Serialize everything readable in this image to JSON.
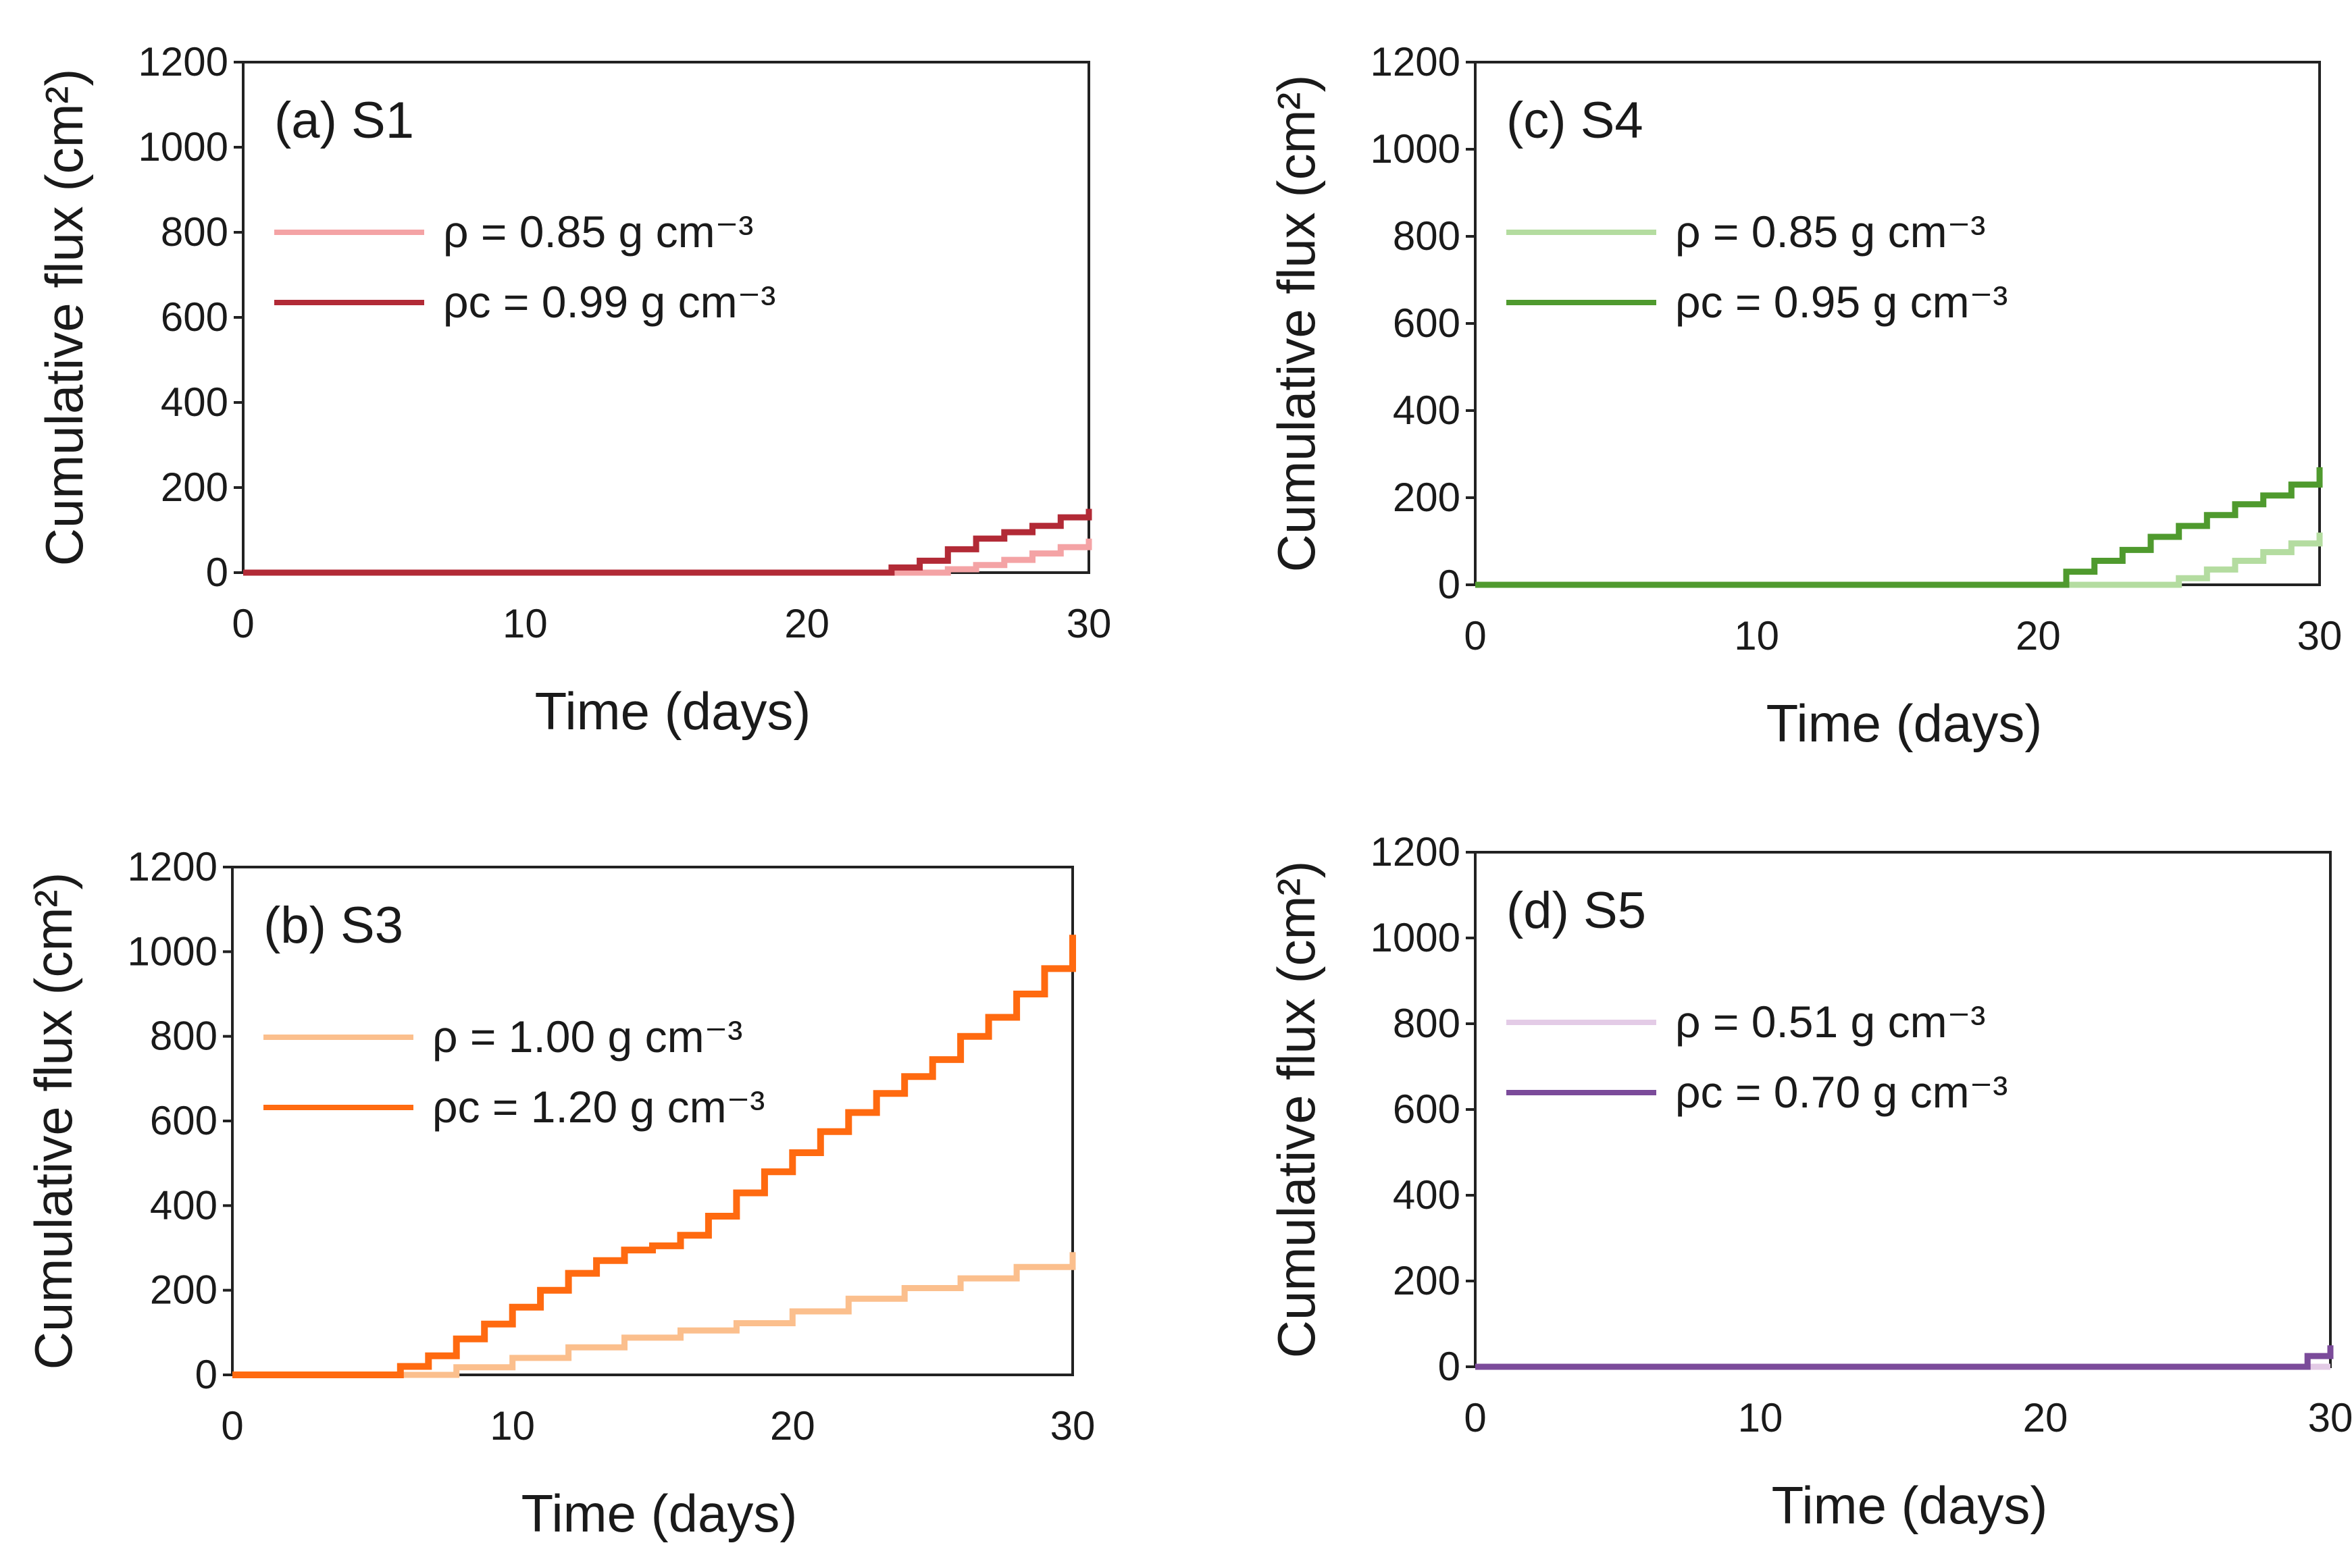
{
  "chart_data": [
    {
      "id": "a",
      "type": "line",
      "title": "(a) S1",
      "xlabel": "Time (days)",
      "ylabel": "Cumulative flux",
      "ylabel_unit": "(cm²)",
      "xlim": [
        0,
        30
      ],
      "ylim": [
        0,
        1200
      ],
      "xticks": [
        0,
        10,
        20,
        30
      ],
      "yticks": [
        0,
        200,
        400,
        600,
        800,
        1000,
        1200
      ],
      "grid": false,
      "legend_position": "upper-left",
      "series": [
        {
          "name": "ρ",
          "legend_label": "ρ   = 0.85 g cm⁻³",
          "color": "#f4a3a5",
          "stroke_width": 9,
          "x": [
            0,
            24,
            25,
            26,
            27,
            28,
            29,
            30
          ],
          "y": [
            0,
            0,
            8,
            18,
            30,
            45,
            60,
            80
          ]
        },
        {
          "name": "ρc",
          "legend_label": "ρc = 0.99 g cm⁻³",
          "color": "#b22a36",
          "stroke_width": 9,
          "x": [
            0,
            22,
            23,
            24,
            25,
            26,
            27,
            28,
            29,
            30
          ],
          "y": [
            0,
            0,
            12,
            28,
            55,
            80,
            95,
            110,
            130,
            150
          ]
        }
      ]
    },
    {
      "id": "c",
      "type": "line",
      "title": "(c) S4",
      "xlabel": "Time (days)",
      "ylabel": "Cumulative flux",
      "ylabel_unit": "(cm²)",
      "xlim": [
        0,
        30
      ],
      "ylim": [
        0,
        1200
      ],
      "xticks": [
        0,
        10,
        20,
        30
      ],
      "yticks": [
        0,
        200,
        400,
        600,
        800,
        1000,
        1200
      ],
      "grid": false,
      "legend_position": "upper-left",
      "series": [
        {
          "name": "ρ",
          "legend_label": "ρ   = 0.85 g cm⁻³",
          "color": "#b4dca0",
          "stroke_width": 9,
          "x": [
            0,
            24,
            25,
            26,
            27,
            28,
            29,
            30
          ],
          "y": [
            0,
            0,
            15,
            35,
            55,
            75,
            95,
            120
          ]
        },
        {
          "name": "ρc",
          "legend_label": "ρc = 0.95 g cm⁻³",
          "color": "#4f9a2e",
          "stroke_width": 9,
          "x": [
            0,
            20,
            21,
            22,
            23,
            24,
            25,
            26,
            27,
            28,
            29,
            30
          ],
          "y": [
            0,
            0,
            30,
            55,
            80,
            110,
            135,
            160,
            185,
            205,
            230,
            270
          ]
        }
      ]
    },
    {
      "id": "b",
      "type": "line",
      "title": "(b) S3",
      "xlabel": "Time (days)",
      "ylabel": "Cumulative flux",
      "ylabel_unit": "(cm²)",
      "xlim": [
        0,
        30
      ],
      "ylim": [
        0,
        1200
      ],
      "xticks": [
        0,
        10,
        20,
        30
      ],
      "yticks": [
        0,
        200,
        400,
        600,
        800,
        1000,
        1200
      ],
      "grid": false,
      "legend_position": "upper-left",
      "series": [
        {
          "name": "ρ",
          "legend_label": "ρ   = 1.00 g cm⁻³",
          "color": "#fbbf8d",
          "stroke_width": 9,
          "x": [
            0,
            5,
            8,
            10,
            12,
            14,
            16,
            18,
            20,
            22,
            24,
            26,
            28,
            30
          ],
          "y": [
            0,
            0,
            18,
            40,
            65,
            88,
            105,
            122,
            150,
            180,
            205,
            228,
            255,
            290
          ]
        },
        {
          "name": "ρc",
          "legend_label": "ρc = 1.20 g cm⁻³",
          "color": "#ff6a10",
          "stroke_width": 10,
          "x": [
            0,
            5,
            6,
            7,
            8,
            9,
            10,
            11,
            12,
            13,
            14,
            15,
            16,
            17,
            18,
            19,
            20,
            21,
            22,
            23,
            24,
            25,
            26,
            27,
            28,
            29,
            30
          ],
          "y": [
            0,
            0,
            20,
            45,
            85,
            120,
            160,
            200,
            240,
            270,
            295,
            305,
            330,
            375,
            430,
            480,
            525,
            575,
            620,
            665,
            705,
            745,
            800,
            845,
            900,
            960,
            1040
          ]
        }
      ]
    },
    {
      "id": "d",
      "type": "line",
      "title": "(d) S5",
      "xlabel": "Time (days)",
      "ylabel": "Cumulative flux",
      "ylabel_unit": "(cm²)",
      "xlim": [
        0,
        30
      ],
      "ylim": [
        0,
        1200
      ],
      "xticks": [
        0,
        10,
        20,
        30
      ],
      "yticks": [
        0,
        200,
        400,
        600,
        800,
        1000,
        1200
      ],
      "grid": false,
      "legend_position": "upper-left",
      "series": [
        {
          "name": "ρ",
          "legend_label": "ρ   = 0.51 g cm⁻³",
          "color": "#e3cbe6",
          "stroke_width": 9,
          "x": [
            0,
            30
          ],
          "y": [
            0,
            0
          ]
        },
        {
          "name": "ρc",
          "legend_label": "ρc = 0.70 g cm⁻³",
          "color": "#7b4b9a",
          "stroke_width": 9,
          "x": [
            0,
            28.8,
            29.2,
            30
          ],
          "y": [
            0,
            0,
            25,
            50
          ]
        }
      ]
    }
  ]
}
